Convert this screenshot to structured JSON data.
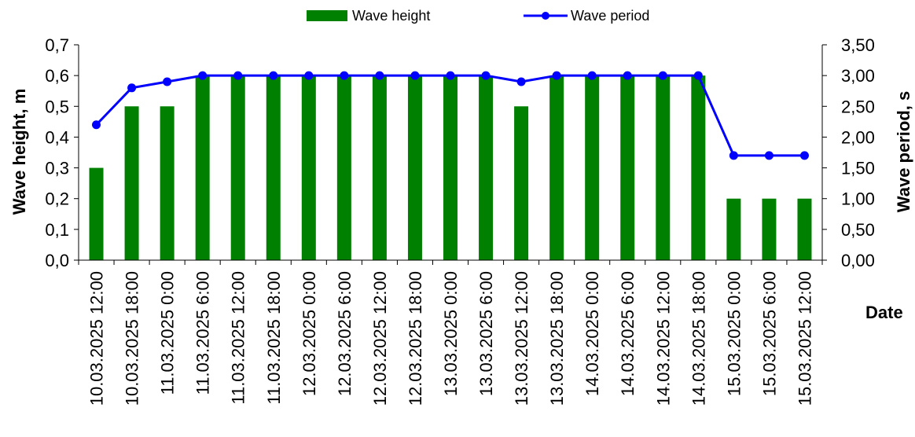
{
  "chart_data": {
    "type": "bar",
    "categories": [
      "10.03.2025 12:00",
      "10.03.2025 18:00",
      "11.03.2025 0:00",
      "11.03.2025 6:00",
      "11.03.2025 12:00",
      "11.03.2025 18:00",
      "12.03.2025 0:00",
      "12.03.2025 6:00",
      "12.03.2025 12:00",
      "12.03.2025 18:00",
      "13.03.2025 0:00",
      "13.03.2025 6:00",
      "13.03.2025 12:00",
      "13.03.2025 18:00",
      "14.03.2025 0:00",
      "14.03.2025 6:00",
      "14.03.2025 12:00",
      "14.03.2025 18:00",
      "15.03.2025 0:00",
      "15.03.2025 6:00",
      "15.03.2025 12:00"
    ],
    "series": [
      {
        "name": "Wave height",
        "type": "bar",
        "axis": "left",
        "color": "#008000",
        "values": [
          0.3,
          0.5,
          0.5,
          0.6,
          0.6,
          0.6,
          0.6,
          0.6,
          0.6,
          0.6,
          0.6,
          0.6,
          0.5,
          0.6,
          0.6,
          0.6,
          0.6,
          0.6,
          0.2,
          0.2,
          0.2
        ]
      },
      {
        "name": "Wave period",
        "type": "line",
        "axis": "right",
        "color": "#0000ff",
        "values": [
          2.2,
          2.8,
          2.9,
          3.0,
          3.0,
          3.0,
          3.0,
          3.0,
          3.0,
          3.0,
          3.0,
          3.0,
          2.9,
          3.0,
          3.0,
          3.0,
          3.0,
          3.0,
          1.7,
          1.7,
          1.7
        ]
      }
    ],
    "ylabel": "Wave height, m",
    "y2label": "Wave period, s",
    "xlabel": "Date",
    "ylim": [
      0,
      0.7
    ],
    "y2lim": [
      0,
      3.5
    ],
    "yticks": [
      "0,0",
      "0,1",
      "0,2",
      "0,3",
      "0,4",
      "0,5",
      "0,6",
      "0,7"
    ],
    "y2ticks": [
      "0,00",
      "0,50",
      "1,00",
      "1,50",
      "2,00",
      "2,50",
      "3,00",
      "3,50"
    ],
    "grid": false,
    "legend_position": "top-center"
  }
}
